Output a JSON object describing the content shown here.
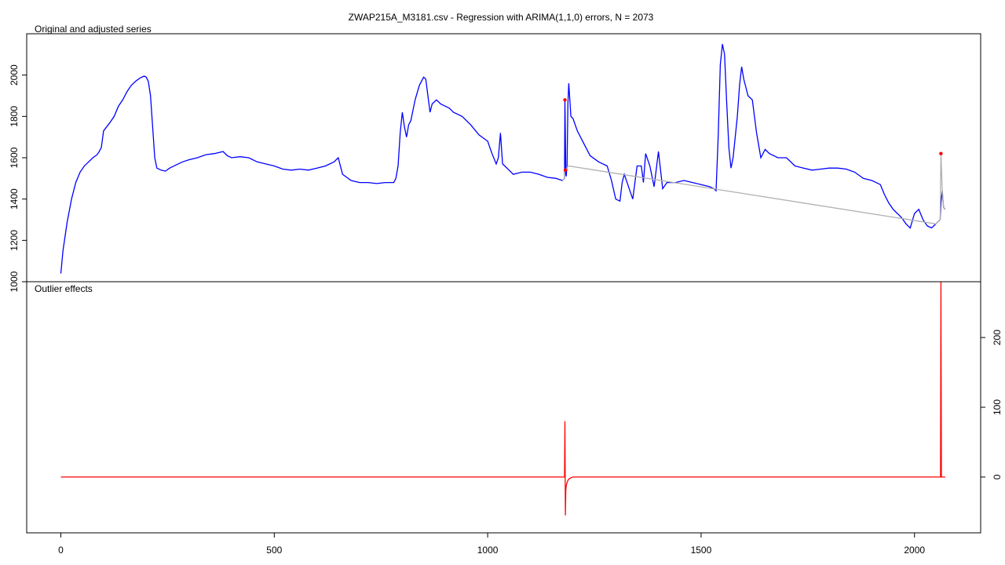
{
  "title": "ZWAP215A_M3181.csv - Regression with ARIMA(1,1,0) errors, N = 2073",
  "chart_data": [
    {
      "type": "line",
      "panel_title": "Original and adjusted series",
      "xlim": [
        -80,
        2155
      ],
      "ylim": [
        1000,
        2200
      ],
      "y_ticks": [
        1000,
        1200,
        1400,
        1600,
        1800,
        2000
      ],
      "x_ticks": [
        0,
        500,
        1000,
        1500,
        2000
      ],
      "grid": false,
      "series": [
        {
          "color": "#0000ff",
          "x": [
            0,
            5,
            15,
            25,
            35,
            45,
            55,
            65,
            75,
            85,
            90,
            95,
            100,
            115,
            125,
            135,
            145,
            155,
            165,
            175,
            185,
            195,
            200,
            205,
            210,
            215,
            220,
            225,
            235,
            245,
            255,
            270,
            285,
            300,
            320,
            340,
            360,
            380,
            390,
            400,
            420,
            440,
            460,
            480,
            500,
            520,
            540,
            560,
            580,
            600,
            620,
            640,
            650,
            660,
            680,
            700,
            720,
            740,
            760,
            780,
            785,
            790,
            795,
            800,
            805,
            810,
            815,
            820,
            830,
            840,
            850,
            855,
            860,
            865,
            870,
            880,
            890,
            900,
            910,
            920,
            940,
            960,
            980,
            1000,
            1010,
            1020,
            1025,
            1030,
            1035,
            1040,
            1050,
            1060,
            1080,
            1100,
            1120,
            1140,
            1160,
            1175,
            1180,
            1181,
            1182,
            1183,
            1184,
            1186,
            1188,
            1190,
            1195,
            1200,
            1210,
            1220,
            1230,
            1240,
            1260,
            1280,
            1290,
            1300,
            1310,
            1315,
            1320,
            1330,
            1340,
            1350,
            1360,
            1365,
            1370,
            1380,
            1390,
            1400,
            1410,
            1420,
            1440,
            1460,
            1480,
            1500,
            1520,
            1530,
            1535,
            1540,
            1545,
            1550,
            1555,
            1560,
            1565,
            1570,
            1575,
            1580,
            1585,
            1590,
            1595,
            1600,
            1610,
            1620,
            1630,
            1640,
            1650,
            1660,
            1680,
            1700,
            1720,
            1740,
            1760,
            1780,
            1800,
            1820,
            1840,
            1860,
            1880,
            1900,
            1910,
            1920,
            1930,
            1940,
            1950,
            1960,
            1970,
            1980,
            1990,
            2000,
            2010,
            2020,
            2030,
            2040,
            2050,
            2055,
            2060,
            2062,
            2065,
            2068,
            2072
          ],
          "y": [
            1040,
            1150,
            1290,
            1400,
            1480,
            1530,
            1560,
            1580,
            1600,
            1615,
            1630,
            1650,
            1730,
            1770,
            1800,
            1850,
            1880,
            1920,
            1950,
            1970,
            1985,
            1995,
            1990,
            1970,
            1900,
            1750,
            1600,
            1550,
            1540,
            1535,
            1550,
            1565,
            1580,
            1590,
            1600,
            1615,
            1620,
            1630,
            1610,
            1600,
            1605,
            1600,
            1580,
            1570,
            1560,
            1545,
            1540,
            1545,
            1540,
            1550,
            1560,
            1580,
            1600,
            1520,
            1490,
            1480,
            1480,
            1475,
            1480,
            1480,
            1500,
            1560,
            1720,
            1820,
            1750,
            1700,
            1760,
            1780,
            1880,
            1950,
            1990,
            1980,
            1900,
            1820,
            1860,
            1880,
            1860,
            1850,
            1840,
            1820,
            1800,
            1760,
            1710,
            1680,
            1620,
            1570,
            1600,
            1720,
            1570,
            1560,
            1540,
            1520,
            1530,
            1530,
            1520,
            1505,
            1500,
            1490,
            1500,
            1880,
            1700,
            1520,
            1510,
            1560,
            1860,
            1960,
            1800,
            1790,
            1730,
            1690,
            1650,
            1610,
            1580,
            1560,
            1490,
            1400,
            1390,
            1480,
            1520,
            1460,
            1400,
            1560,
            1560,
            1480,
            1620,
            1560,
            1460,
            1630,
            1450,
            1480,
            1480,
            1490,
            1480,
            1470,
            1460,
            1450,
            1440,
            1700,
            2050,
            2150,
            2100,
            1870,
            1650,
            1550,
            1600,
            1700,
            1800,
            1950,
            2040,
            1980,
            1900,
            1880,
            1720,
            1600,
            1640,
            1620,
            1600,
            1600,
            1560,
            1550,
            1540,
            1545,
            1550,
            1550,
            1545,
            1530,
            1500,
            1490,
            1480,
            1470,
            1420,
            1380,
            1350,
            1330,
            1310,
            1280,
            1260,
            1330,
            1350,
            1300,
            1270,
            1260,
            1280,
            1290,
            1300,
            1380,
            1440,
            1360,
            1350
          ]
        },
        {
          "color": "#b0b0b0",
          "x": [
            1175,
            1180,
            1181,
            1182,
            1183,
            1184,
            1186,
            1188,
            1190,
            2050,
            2055,
            2060,
            2062,
            2065,
            2068,
            2072
          ],
          "y": [
            1490,
            1500,
            1540,
            1540,
            1545,
            1545,
            1550,
            1560,
            1560,
            1280,
            1290,
            1300,
            1620,
            1440,
            1360,
            1350
          ]
        }
      ],
      "markers": {
        "color": "#ff0000",
        "x": [
          1181,
          1182,
          2062
        ],
        "y": [
          1880,
          1540,
          1620
        ]
      }
    },
    {
      "type": "line",
      "panel_title": "Outlier effects",
      "xlim": [
        -80,
        2155
      ],
      "ylim": [
        -80,
        280
      ],
      "y_ticks": [
        0,
        100,
        200
      ],
      "x_ticks": [
        0,
        500,
        1000,
        1500,
        2000
      ],
      "grid": false,
      "series": [
        {
          "color": "#ff0000",
          "x": [
            0,
            1179,
            1180,
            1181,
            1182,
            1183,
            1184,
            1186,
            1188,
            1190,
            1195,
            1200,
            1210,
            1220,
            2060,
            2061,
            2062,
            2063,
            2072
          ],
          "y": [
            0,
            0,
            0,
            80,
            -55,
            -20,
            -13,
            -8,
            -5,
            -3,
            -1,
            0,
            0,
            0,
            0,
            0,
            280,
            0,
            0
          ]
        }
      ]
    }
  ]
}
